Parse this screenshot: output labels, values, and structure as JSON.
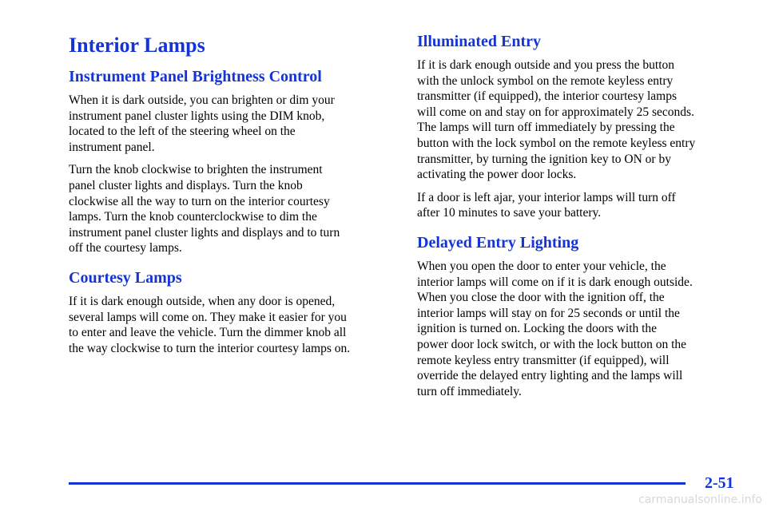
{
  "header": {
    "title": "Interior Lamps"
  },
  "sections": [
    {
      "heading": "Instrument Panel Brightness Control",
      "paragraphs": [
        [
          "When it is dark outside, you can brighten or dim your",
          "instrument panel cluster lights using the DIM knob,",
          "located to the left of the steering wheel on the",
          "instrument panel."
        ],
        [
          "Turn the knob clockwise to brighten the instrument",
          "panel cluster lights and displays. Turn the knob",
          "clockwise all the way to turn on the interior courtesy",
          "lamps. Turn the knob counterclockwise to dim the",
          "instrument panel cluster lights and displays and to turn",
          "off the courtesy lamps."
        ]
      ]
    },
    {
      "heading": "Courtesy Lamps",
      "paragraphs": [
        [
          "If it is dark enough outside, when any door is opened,",
          "several lamps will come on. They make it easier for you",
          "to enter and leave the vehicle. Turn the dimmer knob all",
          "the way clockwise to turn the interior courtesy lamps on."
        ]
      ]
    },
    {
      "heading": "Illuminated Entry",
      "paragraphs": [
        [
          "If it is dark enough outside and you press the button",
          "with the unlock symbol on the remote keyless entry",
          "transmitter (if equipped), the interior courtesy lamps",
          "will come on and stay on for approximately 25 seconds.",
          "The lamps will turn off immediately by pressing the",
          "button with the lock symbol on the remote keyless entry",
          "transmitter, by turning the ignition key to ON or by",
          "activating the power door locks."
        ],
        [
          "If a door is left ajar, your interior lamps will turn off",
          "after 10 minutes to save your battery."
        ]
      ]
    },
    {
      "heading": "Delayed Entry Lighting",
      "paragraphs": [
        [
          "When you open the door to enter your vehicle, the",
          "interior lamps will come on if it is dark enough outside.",
          "When you close the door with the ignition off, the",
          "interior lamps will stay on for 25 seconds or until the",
          "ignition is turned on. Locking the doors with the",
          "power door lock switch, or with the lock button on the",
          "remote keyless entry transmitter (if equipped), will",
          "override the delayed entry lighting and the lamps will",
          "turn off immediately."
        ]
      ]
    }
  ],
  "footer": {
    "page_number": "2-51",
    "watermark": "carmanualsonline.info"
  }
}
